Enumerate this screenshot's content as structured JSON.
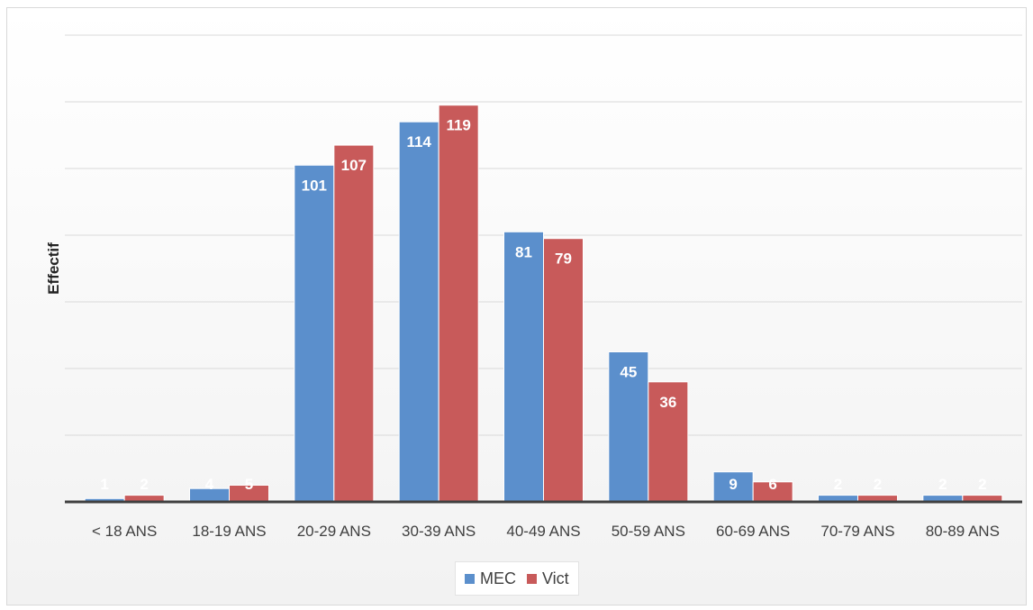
{
  "chart_data": {
    "type": "bar",
    "categories": [
      "< 18 ANS",
      "18-19 ANS",
      "20-29 ANS",
      "30-39 ANS",
      "40-49 ANS",
      "50-59 ANS",
      "60-69 ANS",
      "70-79 ANS",
      "80-89 ANS"
    ],
    "series": [
      {
        "name": "MEC",
        "values": [
          1,
          4,
          101,
          114,
          81,
          45,
          9,
          2,
          2
        ],
        "color": "#5b8fcc"
      },
      {
        "name": "Vict",
        "values": [
          2,
          5,
          107,
          119,
          79,
          36,
          6,
          2,
          2
        ],
        "color": "#c85a5a"
      }
    ],
    "ylabel": "Effectif",
    "xlabel": "",
    "ylim": [
      0,
      140
    ],
    "y_gridline_step": 20,
    "grid": true,
    "data_labels": true,
    "legend": "bottom"
  }
}
